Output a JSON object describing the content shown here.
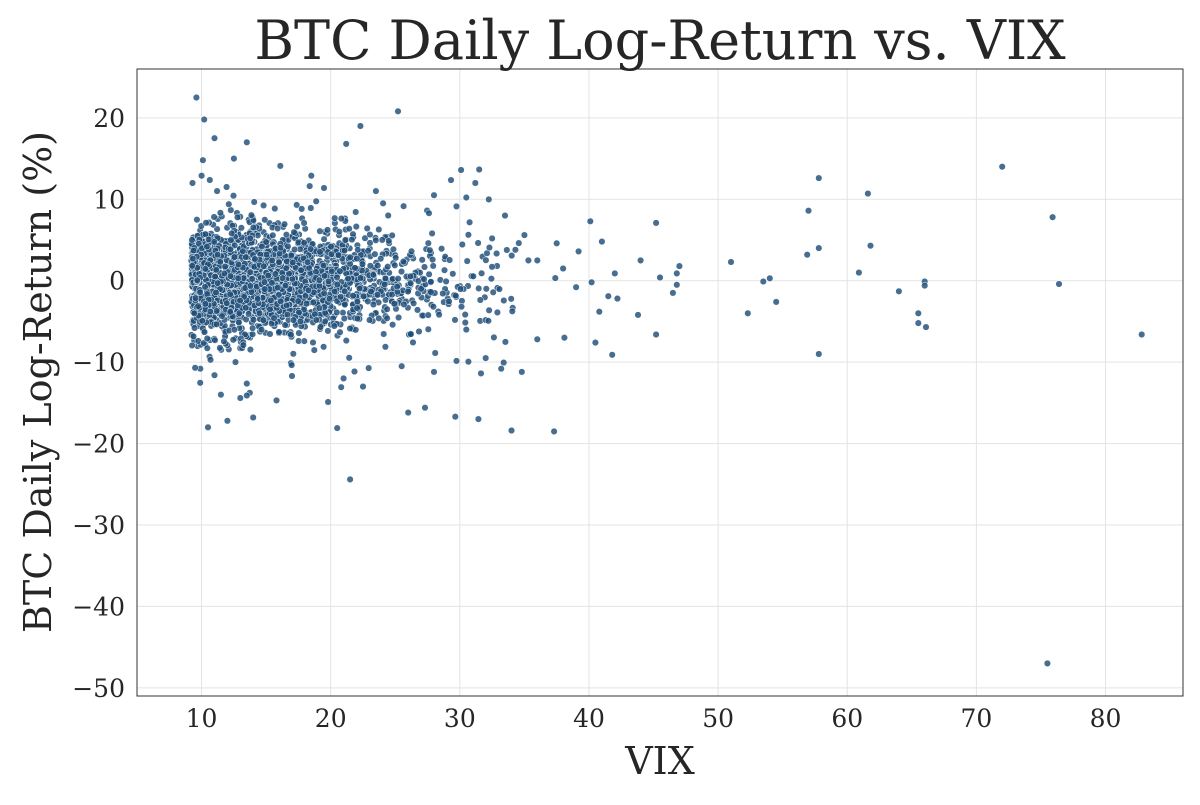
{
  "chart_data": {
    "type": "scatter",
    "title": "BTC Daily Log-Return vs. VIX",
    "xlabel": "VIX",
    "ylabel": "BTC Daily Log-Return (%)",
    "xlim": [
      5,
      86
    ],
    "ylim": [
      -51,
      26
    ],
    "xticks": [
      10,
      20,
      30,
      40,
      50,
      60,
      70,
      80
    ],
    "yticks": [
      -50,
      -40,
      -30,
      -20,
      -10,
      0,
      10,
      20
    ],
    "ytick_labels": [
      "−50",
      "−40",
      "−30",
      "−20",
      "−10",
      "0",
      "10",
      "20"
    ],
    "grid": true,
    "legend": "none",
    "marker_color": "#1f4e79",
    "cluster": {
      "description_note": "dense body of points",
      "x_range": [
        9,
        30
      ],
      "y_range": [
        -8,
        8
      ]
    },
    "points": [
      [
        9.6,
        22.5
      ],
      [
        10.2,
        19.8
      ],
      [
        11.0,
        17.5
      ],
      [
        13.5,
        17.0
      ],
      [
        10.1,
        14.8
      ],
      [
        12.5,
        15.0
      ],
      [
        16.1,
        14.1
      ],
      [
        21.2,
        16.8
      ],
      [
        22.3,
        19.0
      ],
      [
        9.3,
        12.0
      ],
      [
        10.0,
        12.9
      ],
      [
        11.2,
        11.0
      ],
      [
        18.5,
        12.9
      ],
      [
        23.5,
        11.0
      ],
      [
        28.0,
        10.5
      ],
      [
        30.1,
        13.6
      ],
      [
        31.2,
        12.0
      ],
      [
        33.5,
        8.0
      ],
      [
        40.1,
        7.3
      ],
      [
        45.2,
        7.1
      ],
      [
        57.8,
        12.6
      ],
      [
        57.0,
        8.6
      ],
      [
        61.6,
        10.7
      ],
      [
        72.0,
        14.0
      ],
      [
        75.9,
        7.8
      ],
      [
        61.8,
        4.3
      ],
      [
        57.8,
        4.0
      ],
      [
        56.9,
        3.2
      ],
      [
        51.0,
        2.3
      ],
      [
        47.0,
        1.8
      ],
      [
        54.0,
        0.3
      ],
      [
        53.5,
        -0.1
      ],
      [
        60.9,
        1.0
      ],
      [
        66.0,
        -0.1
      ],
      [
        66.0,
        -0.6
      ],
      [
        76.4,
        -0.4
      ],
      [
        64.0,
        -1.3
      ],
      [
        54.5,
        -2.6
      ],
      [
        52.3,
        -4.0
      ],
      [
        65.5,
        -4.0
      ],
      [
        65.5,
        -5.2
      ],
      [
        66.1,
        -5.7
      ],
      [
        57.8,
        -9.0
      ],
      [
        82.8,
        -6.6
      ],
      [
        75.5,
        -47.0
      ],
      [
        45.2,
        -6.6
      ],
      [
        43.8,
        -4.2
      ],
      [
        41.8,
        -9.1
      ],
      [
        40.5,
        -7.6
      ],
      [
        37.3,
        -18.5
      ],
      [
        34.0,
        -18.4
      ],
      [
        34.8,
        -11.2
      ],
      [
        33.2,
        -10.8
      ],
      [
        30.5,
        -6.0
      ],
      [
        26.0,
        -16.2
      ],
      [
        27.3,
        -15.6
      ],
      [
        21.5,
        -24.4
      ],
      [
        20.5,
        -18.1
      ],
      [
        19.8,
        -14.9
      ],
      [
        15.8,
        -14.7
      ],
      [
        13.5,
        -14.1
      ],
      [
        13.0,
        -14.4
      ],
      [
        12.0,
        -17.2
      ],
      [
        10.5,
        -18.0
      ],
      [
        11.5,
        -14.0
      ],
      [
        9.9,
        -10.8
      ],
      [
        9.5,
        -10.7
      ],
      [
        11.0,
        -11.6
      ],
      [
        14.0,
        -16.8
      ],
      [
        17.0,
        -11.7
      ],
      [
        21.0,
        -12.0
      ],
      [
        22.5,
        -13.0
      ],
      [
        25.5,
        -10.5
      ],
      [
        28.0,
        -11.2
      ],
      [
        32.0,
        -9.5
      ],
      [
        36.0,
        -7.2
      ],
      [
        38.1,
        -7.0
      ],
      [
        40.8,
        -3.8
      ],
      [
        42.2,
        -2.2
      ],
      [
        44.0,
        2.5
      ],
      [
        41.0,
        4.8
      ],
      [
        39.2,
        3.6
      ],
      [
        37.5,
        4.6
      ],
      [
        35.0,
        5.6
      ],
      [
        46.8,
        0.9
      ],
      [
        46.8,
        -0.5
      ],
      [
        46.5,
        -1.5
      ],
      [
        45.5,
        0.4
      ],
      [
        42.0,
        0.9
      ],
      [
        40.2,
        -0.2
      ],
      [
        39.0,
        -0.8
      ],
      [
        41.5,
        -1.9
      ],
      [
        38.0,
        1.5
      ],
      [
        36.0,
        2.5
      ],
      [
        34.3,
        3.8
      ],
      [
        32.5,
        5.2
      ]
    ]
  }
}
